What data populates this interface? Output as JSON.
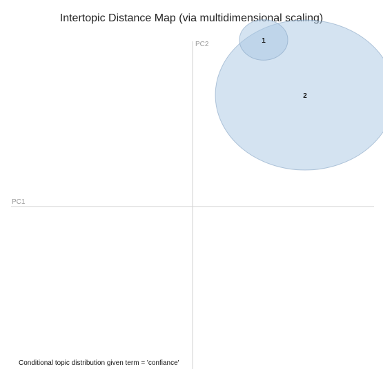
{
  "chart_data": {
    "type": "scatter",
    "title": "Intertopic Distance Map (via multidimensional scaling)",
    "xlabel": "PC1",
    "ylabel": "PC2",
    "xlim": [
      -0.3,
      0.3
    ],
    "ylim": [
      -0.3,
      0.3
    ],
    "grid": false,
    "legend": "none",
    "points": [
      {
        "label": "2",
        "x": 0.163,
        "y": 0.162,
        "size": 0.23
      },
      {
        "label": "1",
        "x": 0.103,
        "y": 0.242,
        "size": 0.062
      }
    ],
    "colors": {
      "bubble_fill": "#a9c8e3",
      "bubble_stroke": "#7f9fbf",
      "axis": "#d0d0d0",
      "axis_label": "#999999"
    }
  },
  "footer": {
    "caption": "Conditional topic distribution given term = 'confiance'"
  }
}
